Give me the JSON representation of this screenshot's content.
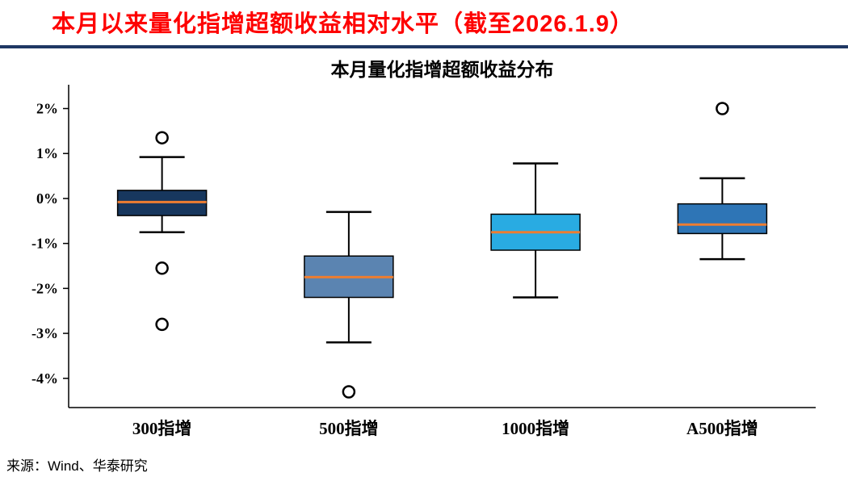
{
  "page": {
    "header_title": "本月以来量化指增超额收益相对水平（截至2026.1.9）",
    "source_note": "来源：Wind、华泰研究"
  },
  "chart_data": {
    "type": "boxplot",
    "title": "本月量化指增超额收益分布",
    "ylim": [
      -4.65,
      2.35
    ],
    "yticks": [
      2,
      1,
      0,
      -1,
      -2,
      -3,
      -4
    ],
    "ytick_labels": [
      "2%",
      "1%",
      "0%",
      "-1%",
      "-2%",
      "-3%",
      "-4%"
    ],
    "categories": [
      "300指增",
      "500指增",
      "1000指增",
      "A500指增"
    ],
    "series": [
      {
        "name": "300指增",
        "whisker_low": -0.75,
        "q1": -0.38,
        "median": -0.08,
        "q3": 0.18,
        "whisker_high": 0.92,
        "outliers": [
          1.35,
          -1.55,
          -2.8
        ],
        "color": "#17375e"
      },
      {
        "name": "500指增",
        "whisker_low": -3.2,
        "q1": -2.2,
        "median": -1.75,
        "q3": -1.28,
        "whisker_high": -0.3,
        "outliers": [
          -4.3
        ],
        "color": "#5b84b1"
      },
      {
        "name": "1000指增",
        "whisker_low": -2.2,
        "q1": -1.15,
        "median": -0.75,
        "q3": -0.35,
        "whisker_high": 0.78,
        "outliers": [],
        "color": "#29abe2"
      },
      {
        "name": "A500指增",
        "whisker_low": -1.35,
        "q1": -0.78,
        "median": -0.58,
        "q3": -0.12,
        "whisker_high": 0.45,
        "outliers": [
          2.0
        ],
        "color": "#2e75b6"
      }
    ],
    "style": {
      "median_color": "#ed7d31",
      "line_color": "#000000",
      "axis_color": "#000000"
    },
    "legend": "none",
    "grid": false
  }
}
